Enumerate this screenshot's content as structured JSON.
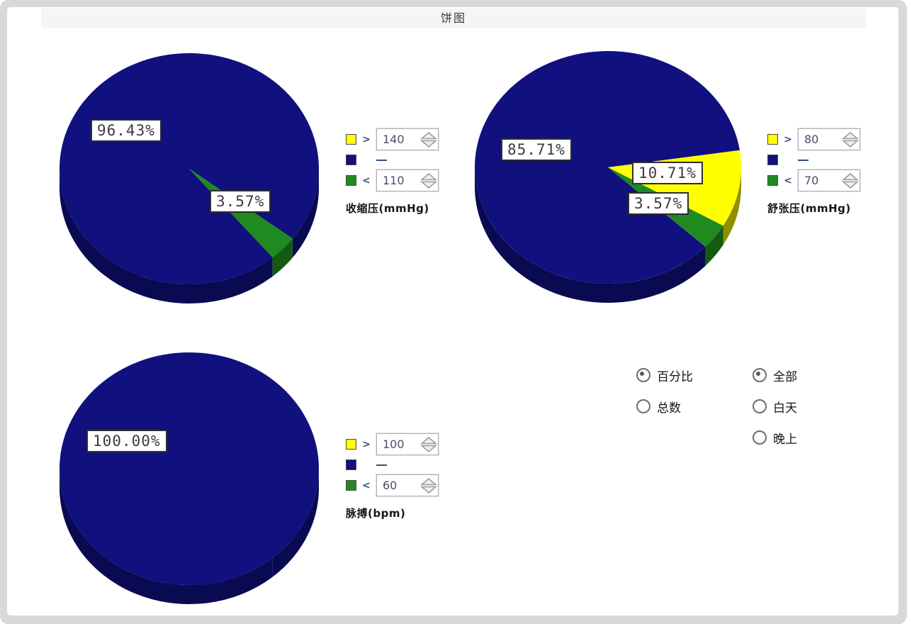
{
  "title": "饼图",
  "colors": {
    "blue": "#10107E",
    "blue_dark": "#0A0A52",
    "yellow": "#FFFF00",
    "yellow_dark": "#8F8F00",
    "green": "#1F8A1F",
    "green_dark": "#135B13"
  },
  "legend_symbols": {
    "gt": ">",
    "lt": "<",
    "dash": "—"
  },
  "chart_data": [
    {
      "type": "pie",
      "name": "收缩压(mmHg)",
      "start_angle_deg": 50,
      "slices": [
        {
          "label": "96.43%",
          "value": 96.43,
          "color_key": "blue"
        },
        {
          "label": "3.57%",
          "value": 3.57,
          "color_key": "green"
        }
      ],
      "thresholds": {
        "upper": "140",
        "lower": "110"
      }
    },
    {
      "type": "pie",
      "name": "舒张压(mmHg)",
      "start_angle_deg": 43,
      "slices": [
        {
          "label": "85.71%",
          "value": 85.71,
          "color_key": "blue"
        },
        {
          "label": "10.71%",
          "value": 10.71,
          "color_key": "yellow"
        },
        {
          "label": "3.57%",
          "value": 3.57,
          "color_key": "green"
        }
      ],
      "thresholds": {
        "upper": "80",
        "lower": "70"
      }
    },
    {
      "type": "pie",
      "name": "脉搏(bpm)",
      "start_angle_deg": 50,
      "slices": [
        {
          "label": "100.00%",
          "value": 100.0,
          "color_key": "blue"
        }
      ],
      "thresholds": {
        "upper": "100",
        "lower": "60"
      }
    }
  ],
  "options": {
    "display_mode": {
      "items": [
        {
          "label": "百分比",
          "selected": true
        },
        {
          "label": "总数",
          "selected": false
        }
      ]
    },
    "time_range": {
      "items": [
        {
          "label": "全部",
          "selected": true
        },
        {
          "label": "白天",
          "selected": false
        },
        {
          "label": "晚上",
          "selected": false
        }
      ]
    }
  }
}
